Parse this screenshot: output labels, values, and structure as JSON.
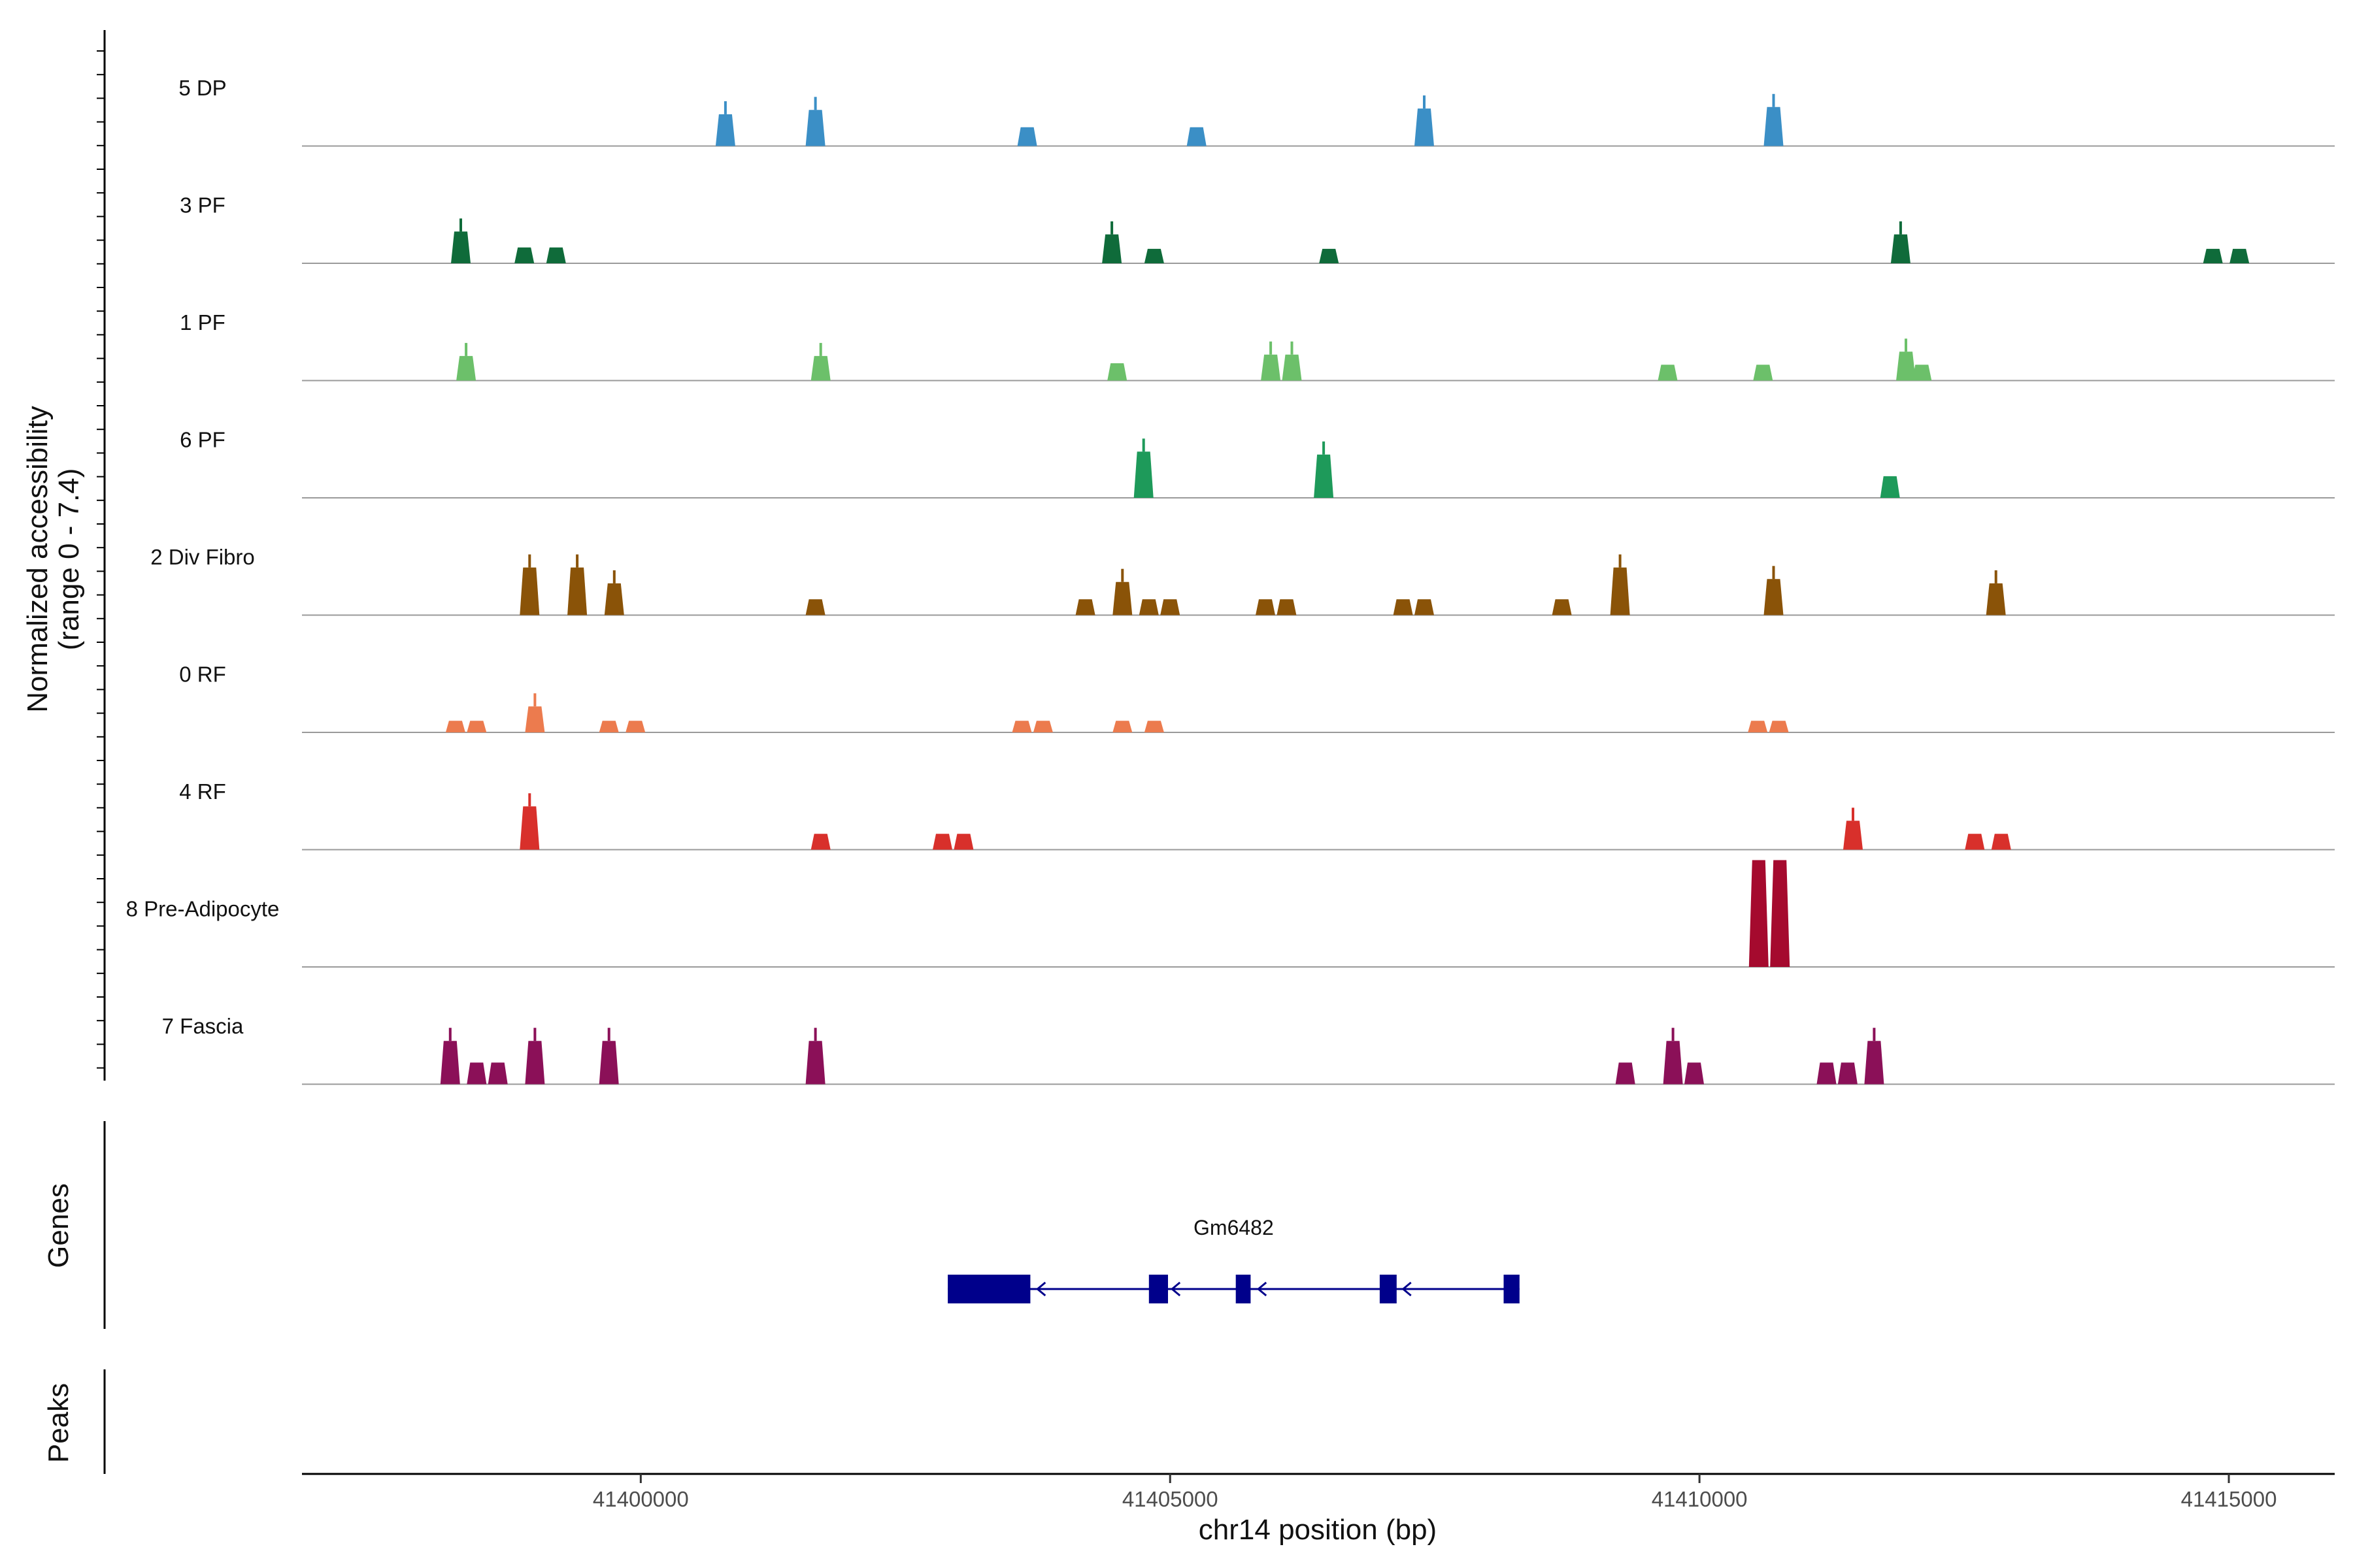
{
  "chart_data": {
    "type": "area",
    "title": "",
    "ylabel_line1": "Normalized accessibility",
    "ylabel_line2": "(range 0 - 7.4)",
    "y_range": [
      0,
      7.4
    ],
    "xlabel": "chr14 position (bp)",
    "x_range": [
      41396800,
      41416000
    ],
    "x_ticks": [
      {
        "value": 41400000,
        "label": "41400000"
      },
      {
        "value": 41405000,
        "label": "41405000"
      },
      {
        "value": 41410000,
        "label": "41410000"
      },
      {
        "value": 41415000,
        "label": "41415000"
      }
    ],
    "tracks": [
      {
        "name": "5 DP",
        "color": "#3b8fc6",
        "peaks": [
          [
            41400800,
            2.2
          ],
          [
            41401650,
            2.5
          ],
          [
            41403650,
            1.3
          ],
          [
            41405250,
            1.3
          ],
          [
            41407400,
            2.6
          ],
          [
            41410700,
            2.7
          ]
        ]
      },
      {
        "name": "3 PF",
        "color": "#0f6b3a",
        "peaks": [
          [
            41398300,
            2.2
          ],
          [
            41398900,
            1.1
          ],
          [
            41399200,
            1.1
          ],
          [
            41404450,
            2.0
          ],
          [
            41404850,
            1.0
          ],
          [
            41406500,
            1.0
          ],
          [
            41411900,
            2.0
          ],
          [
            41414850,
            1.0
          ],
          [
            41415100,
            1.0
          ]
        ]
      },
      {
        "name": "1 PF",
        "color": "#6cc06a",
        "peaks": [
          [
            41398350,
            1.7
          ],
          [
            41401700,
            1.7
          ],
          [
            41404500,
            1.2
          ],
          [
            41405950,
            1.8
          ],
          [
            41406150,
            1.8
          ],
          [
            41409700,
            1.1
          ],
          [
            41410600,
            1.1
          ],
          [
            41411950,
            2.0
          ],
          [
            41412100,
            1.1
          ]
        ]
      },
      {
        "name": "6 PF",
        "color": "#1e9a5a",
        "peaks": [
          [
            41404750,
            3.2
          ],
          [
            41406450,
            3.0
          ],
          [
            41411800,
            1.5
          ]
        ]
      },
      {
        "name": "2 Div Fibro",
        "color": "#8a5308",
        "peaks": [
          [
            41398950,
            3.3
          ],
          [
            41399400,
            3.3
          ],
          [
            41399750,
            2.2
          ],
          [
            41401650,
            1.1
          ],
          [
            41404200,
            1.1
          ],
          [
            41404550,
            2.3
          ],
          [
            41404800,
            1.1
          ],
          [
            41405000,
            1.1
          ],
          [
            41405900,
            1.1
          ],
          [
            41406100,
            1.1
          ],
          [
            41407200,
            1.1
          ],
          [
            41407400,
            1.1
          ],
          [
            41408700,
            1.1
          ],
          [
            41409250,
            3.3
          ],
          [
            41410700,
            2.5
          ],
          [
            41412800,
            2.2
          ]
        ]
      },
      {
        "name": "0 RF",
        "color": "#ec7b4e",
        "peaks": [
          [
            41398250,
            0.8
          ],
          [
            41398450,
            0.8
          ],
          [
            41399000,
            1.8
          ],
          [
            41399700,
            0.8
          ],
          [
            41399950,
            0.8
          ],
          [
            41403600,
            0.8
          ],
          [
            41403800,
            0.8
          ],
          [
            41404550,
            0.8
          ],
          [
            41404850,
            0.8
          ],
          [
            41410550,
            0.8
          ],
          [
            41410750,
            0.8
          ]
        ]
      },
      {
        "name": "4 RF",
        "color": "#d8302b",
        "peaks": [
          [
            41398950,
            3.0
          ],
          [
            41401700,
            1.1
          ],
          [
            41402850,
            1.1
          ],
          [
            41403050,
            1.1
          ],
          [
            41411450,
            2.0
          ],
          [
            41412600,
            1.1
          ],
          [
            41412850,
            1.1
          ]
        ]
      },
      {
        "name": "8 Pre-Adipocyte",
        "color": "#a50a2e",
        "peaks": [
          [
            41410560,
            7.4
          ],
          [
            41410760,
            7.4
          ]
        ]
      },
      {
        "name": "7 Fascia",
        "color": "#8b1058",
        "peaks": [
          [
            41398200,
            3.0
          ],
          [
            41398450,
            1.5
          ],
          [
            41398650,
            1.5
          ],
          [
            41399000,
            3.0
          ],
          [
            41399700,
            3.0
          ],
          [
            41401650,
            3.0
          ],
          [
            41409300,
            1.5
          ],
          [
            41409750,
            3.0
          ],
          [
            41409950,
            1.5
          ],
          [
            41411200,
            1.5
          ],
          [
            41411400,
            1.5
          ],
          [
            41411650,
            3.0
          ]
        ]
      }
    ],
    "genes_label": "Genes",
    "peaks_label": "Peaks",
    "gene": {
      "name": "Gm6482",
      "strand": "-",
      "color": "#00008b",
      "start": 41402900,
      "end": 41408300,
      "exons": [
        [
          41402900,
          41403680
        ],
        [
          41404800,
          41404980
        ],
        [
          41405620,
          41405760
        ],
        [
          41406980,
          41407140
        ],
        [
          41408150,
          41408300
        ]
      ]
    }
  }
}
